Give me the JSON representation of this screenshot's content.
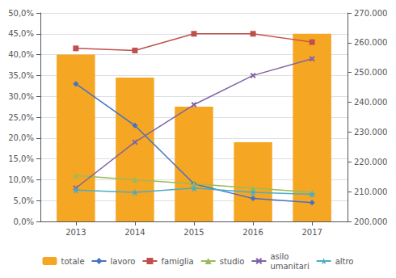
{
  "chart_data": {
    "type": "bar",
    "x": [
      2013,
      2014,
      2015,
      2016,
      2017
    ],
    "xlim": [
      2012.4,
      2017.6
    ],
    "xticks": [
      2013,
      2014,
      2015,
      2016,
      2017
    ],
    "series": [
      {
        "name": "totale",
        "type": "bar",
        "color": "#F5A623",
        "values": [
          40.0,
          34.5,
          27.5,
          19.0,
          45.0
        ]
      },
      {
        "name": "lavoro",
        "type": "line",
        "color": "#4472C4",
        "marker": "diamond",
        "values": [
          33.0,
          23.0,
          9.0,
          5.5,
          4.5
        ]
      },
      {
        "name": "famiglia",
        "type": "line",
        "color": "#C0504D",
        "marker": "square",
        "values": [
          41.5,
          41.0,
          45.0,
          45.0,
          43.0
        ]
      },
      {
        "name": "studio",
        "type": "line",
        "color": "#9BBB59",
        "marker": "triangle",
        "values": [
          11.0,
          10.0,
          9.0,
          8.0,
          7.0
        ]
      },
      {
        "name": "asilo\numanitari",
        "type": "line",
        "color": "#8064A2",
        "marker": "x",
        "values": [
          8.0,
          19.0,
          28.0,
          35.0,
          39.0
        ]
      },
      {
        "name": "altro",
        "type": "line",
        "color": "#4BACC6",
        "marker": "star",
        "values": [
          7.5,
          7.0,
          8.0,
          7.0,
          6.5
        ]
      }
    ],
    "ylim": [
      0,
      50
    ],
    "yticks": [
      {
        "value": 0,
        "label": "0,0%"
      },
      {
        "value": 5,
        "label": "5,0%"
      },
      {
        "value": 10,
        "label": "10,0%"
      },
      {
        "value": 15,
        "label": "15,0%"
      },
      {
        "value": 20,
        "label": "20,0%"
      },
      {
        "value": 25,
        "label": "25,0%"
      },
      {
        "value": 30,
        "label": "30,0%"
      },
      {
        "value": 35,
        "label": "35,0%"
      },
      {
        "value": 40,
        "label": "40,0%"
      },
      {
        "value": 45,
        "label": "45,0%"
      },
      {
        "value": 50,
        "label": "50,0%"
      }
    ],
    "y2lim": [
      200000,
      270000
    ],
    "y2ticks": [
      {
        "value": 200000,
        "label": "200.000"
      },
      {
        "value": 210000,
        "label": "210.000"
      },
      {
        "value": 220000,
        "label": "220.000"
      },
      {
        "value": 230000,
        "label": "230.000"
      },
      {
        "value": 240000,
        "label": "240.000"
      },
      {
        "value": 250000,
        "label": "250.000"
      },
      {
        "value": 260000,
        "label": "260.000"
      },
      {
        "value": 270000,
        "label": "270.000"
      }
    ],
    "grid": true,
    "legend": "bottom"
  }
}
